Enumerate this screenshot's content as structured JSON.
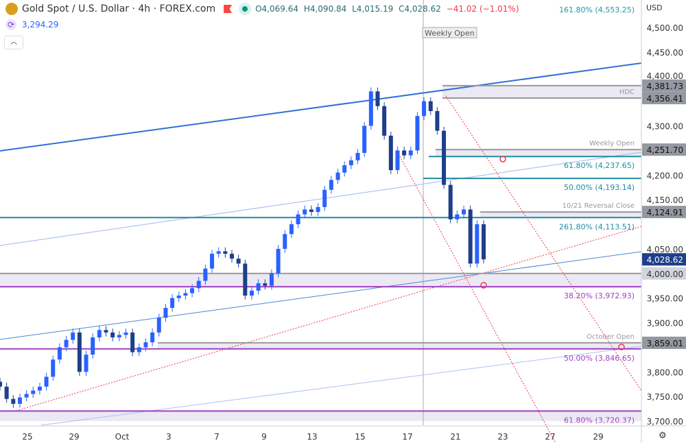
{
  "header": {
    "title": "Gold Spot / U.S. Dollar · 4h · FOREX.com",
    "open": "O4,069.64",
    "high": "H4,090.84",
    "low": "L4,015.19",
    "close": "C4,028.62",
    "change": "−41.02 (−1.01%)",
    "secondary_value": "3,294.29",
    "collapse_icon": "chevron-up-icon"
  },
  "axis": {
    "currency": "USD",
    "settings_icon": "gear-icon"
  },
  "chart_data": {
    "type": "candlestick",
    "ylim": [
      3680,
      4530
    ],
    "y_ticks": [
      3700,
      3750,
      3800,
      3850,
      3900,
      3950,
      4000,
      4050,
      4100,
      4150,
      4200,
      4250,
      4300,
      4350,
      4400,
      4450,
      4500
    ],
    "y_tick_labels": [
      "3,700.00",
      "3,750.00",
      "3,800.00",
      "3,850.00",
      "3,900.00",
      "3,950.00",
      "4,000.00",
      "4,050.00",
      "4,100.00",
      "4,150.00",
      "4,200.00",
      "4,250.00",
      "4,300.00",
      "4,350.00",
      "4,400.00",
      "4,450.00",
      "4,500.00"
    ],
    "x_tick_labels": [
      "25",
      "29",
      "Oct",
      "3",
      "7",
      "9",
      "13",
      "15",
      "17",
      "21",
      "23",
      "27",
      "29"
    ],
    "closes": [
      3770,
      3745,
      3735,
      3748,
      3755,
      3762,
      3770,
      3790,
      3825,
      3850,
      3865,
      3880,
      3800,
      3835,
      3870,
      3885,
      3880,
      3870,
      3875,
      3880,
      3840,
      3850,
      3860,
      3880,
      3910,
      3930,
      3950,
      3955,
      3960,
      3970,
      3985,
      4010,
      4040,
      4045,
      4040,
      4030,
      4020,
      3955,
      3965,
      3980,
      3975,
      4000,
      4050,
      4080,
      4100,
      4120,
      4130,
      4125,
      4135,
      4170,
      4190,
      4205,
      4220,
      4230,
      4245,
      4300,
      4370,
      4340,
      4280,
      4210,
      4250,
      4240,
      4250,
      4320,
      4350,
      4330,
      4290,
      4180,
      4110,
      4120,
      4130,
      4020,
      4100,
      4028.62
    ],
    "last_price": "4,028.62",
    "levels": [
      {
        "label": "161.80% (4,553.25)",
        "value": 4553.25,
        "color": "#2196a8"
      },
      {
        "label": "HDC",
        "value": 4356.41,
        "price_label": "4,356.41",
        "color": "#999"
      },
      {
        "label": "",
        "value": 4381.73,
        "price_label": "4,381.73",
        "color": "#999"
      },
      {
        "label": "Weekly Open",
        "value": 4251.7,
        "price_label": "4,251.70",
        "color": "#999"
      },
      {
        "label": "61.80% (4,237.65)",
        "value": 4237.65,
        "color": "#1f8ba3"
      },
      {
        "label": "50.00% (4,193.14)",
        "value": 4193.14,
        "color": "#1f8ba3"
      },
      {
        "label": "10/21 Reversal Close",
        "value": 4124.91,
        "price_label": "4,124.91",
        "color": "#999"
      },
      {
        "label": "261.80% (4,113.51)",
        "value": 4113.51,
        "color": "#1f8ba3"
      },
      {
        "label": "",
        "value": 4000,
        "price_label": "4,000.00",
        "color": "#999"
      },
      {
        "label": "38.20% (3,972.93)",
        "value": 3972.93,
        "color": "#a040c0"
      },
      {
        "label": "October Open",
        "value": 3859.01,
        "price_label": "3,859.01",
        "color": "#999"
      },
      {
        "label": "50.00% (3,846.65)",
        "value": 3846.65,
        "color": "#a040c0"
      },
      {
        "label": "61.80% (3,720.37)",
        "value": 3720.37,
        "color": "#a040c0"
      }
    ],
    "annotations": {
      "weekly_open_marker": "Weekly Open"
    },
    "colors": {
      "up": "#2962ff",
      "down": "#1e3f8a",
      "fib_teal": "#1f8ba3",
      "fib_purple": "#a040c0",
      "trend": "#2f6fd6",
      "dotted": "#f23645"
    }
  }
}
